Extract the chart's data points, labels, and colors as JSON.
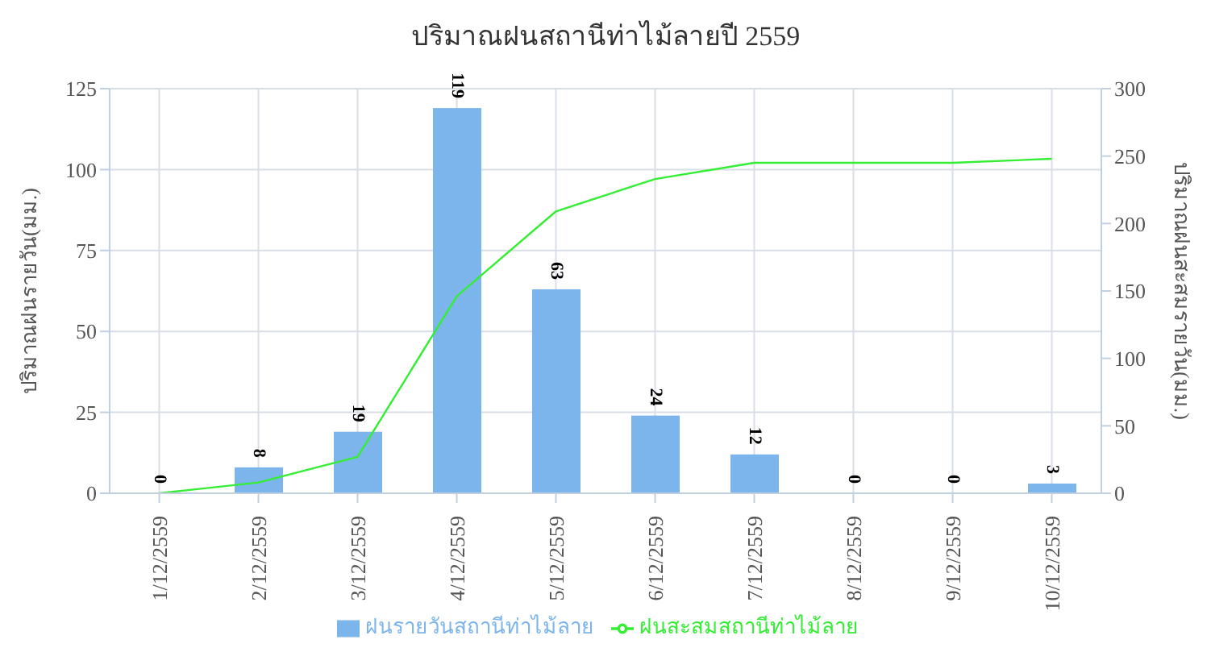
{
  "chart_data": {
    "type": "bar",
    "title": "ปริมาณฝนสถานีท่าไม้ลายปี 2559",
    "ylabel": "ปริมาณฝนรายวัน(มม.)",
    "y2label": "ปริมาณฝนสะสมรายวัน(มม.)",
    "categories": [
      "1/12/2559",
      "2/12/2559",
      "3/12/2559",
      "4/12/2559",
      "5/12/2559",
      "6/12/2559",
      "7/12/2559",
      "8/12/2559",
      "9/12/2559",
      "10/12/2559"
    ],
    "series": [
      {
        "name": "ฝนรายวันสถานีท่าไม้ลาย",
        "type": "bar",
        "color": "#7cb5ec",
        "values": [
          0,
          8,
          19,
          119,
          63,
          24,
          12,
          0,
          0,
          3
        ],
        "data_labels": true
      },
      {
        "name": "ฝนสะสมสถานีท่าไม้ลาย",
        "type": "line",
        "axis": "y2",
        "color": "#33ee33",
        "values": [
          0,
          8,
          27,
          146,
          209,
          233,
          245,
          245,
          245,
          248
        ]
      }
    ],
    "ylim": [
      0,
      125
    ],
    "yticks": [
      0,
      25,
      50,
      75,
      100,
      125
    ],
    "y2lim": [
      0,
      300
    ],
    "y2ticks": [
      0,
      50,
      100,
      150,
      200,
      250,
      300
    ],
    "grid": true,
    "legend": "bottom",
    "marker": "none",
    "line_style": "solid"
  }
}
